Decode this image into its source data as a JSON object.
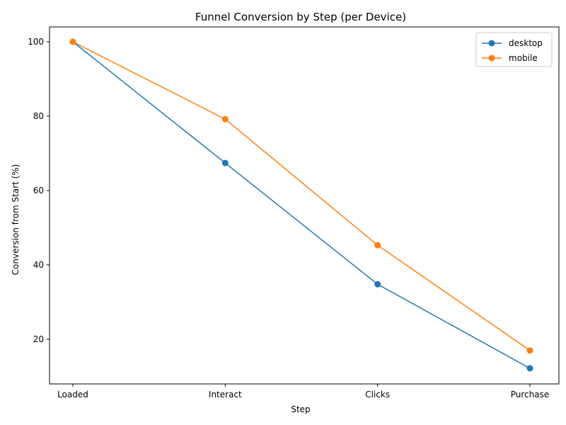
{
  "chart_data": {
    "type": "line",
    "title": "Funnel Conversion by Step (per Device)",
    "xlabel": "Step",
    "ylabel": "Conversion from Start (%)",
    "categories": [
      "Loaded",
      "Interact",
      "Clicks",
      "Purchase"
    ],
    "ylim": [
      8,
      104
    ],
    "yticks": [
      20,
      40,
      60,
      80,
      100
    ],
    "grid": false,
    "legend": "top-right",
    "series": [
      {
        "name": "desktop",
        "color": "#1f77b4",
        "values": [
          100,
          67.4,
          34.8,
          12.2
        ]
      },
      {
        "name": "mobile",
        "color": "#ff7f0e",
        "values": [
          100,
          79.2,
          45.3,
          17.0
        ]
      }
    ]
  }
}
